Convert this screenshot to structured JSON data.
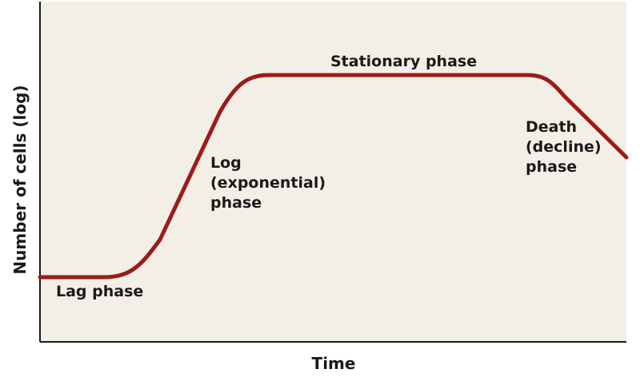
{
  "diagram": {
    "x_axis_label": "Time",
    "y_axis_label": "Number of cells (log)",
    "phases": {
      "lag": [
        "Lag phase"
      ],
      "log": [
        "Log",
        "(exponential)",
        "phase"
      ],
      "stationary": [
        "Stationary phase"
      ],
      "death": [
        "Death",
        "(decline)",
        "phase"
      ]
    },
    "colors": {
      "background": "#f3efe6",
      "curve": "#9b1b1b",
      "axis": "#1a1a1a"
    }
  }
}
